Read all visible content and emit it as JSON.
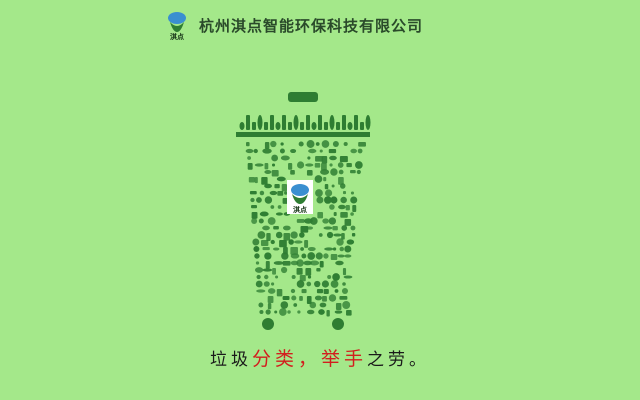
{
  "header": {
    "logo_text": "淇点",
    "company_name": "杭州淇点智能环保科技有限公司"
  },
  "bin": {
    "center_logo_text": "淇点"
  },
  "slogan": {
    "part1": "垃圾",
    "part2": "分类，举手",
    "part3": "之劳。"
  },
  "colors": {
    "background": "#a4e88a",
    "icon_green": "#2e7d32",
    "accent_red": "#d21e1e",
    "logo_blue": "#3a8fd0"
  }
}
